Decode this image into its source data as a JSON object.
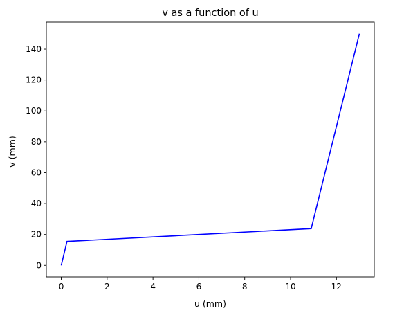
{
  "chart_data": {
    "type": "line",
    "title": "v as a function of u",
    "xlabel": "u (mm)",
    "ylabel": "v (mm)",
    "xlim": [
      -0.65,
      13.65
    ],
    "ylim": [
      -7.5,
      157.5
    ],
    "xticks": [
      0,
      2,
      4,
      6,
      8,
      10,
      12
    ],
    "yticks": [
      0,
      20,
      40,
      60,
      80,
      100,
      120,
      140
    ],
    "grid": false,
    "series": [
      {
        "color": "#0000ff",
        "points": [
          {
            "x": 0,
            "y": 0
          },
          {
            "x": 0.25,
            "y": 15.5
          },
          {
            "x": 10.9,
            "y": 23.8
          },
          {
            "x": 13.0,
            "y": 150
          }
        ]
      }
    ]
  }
}
